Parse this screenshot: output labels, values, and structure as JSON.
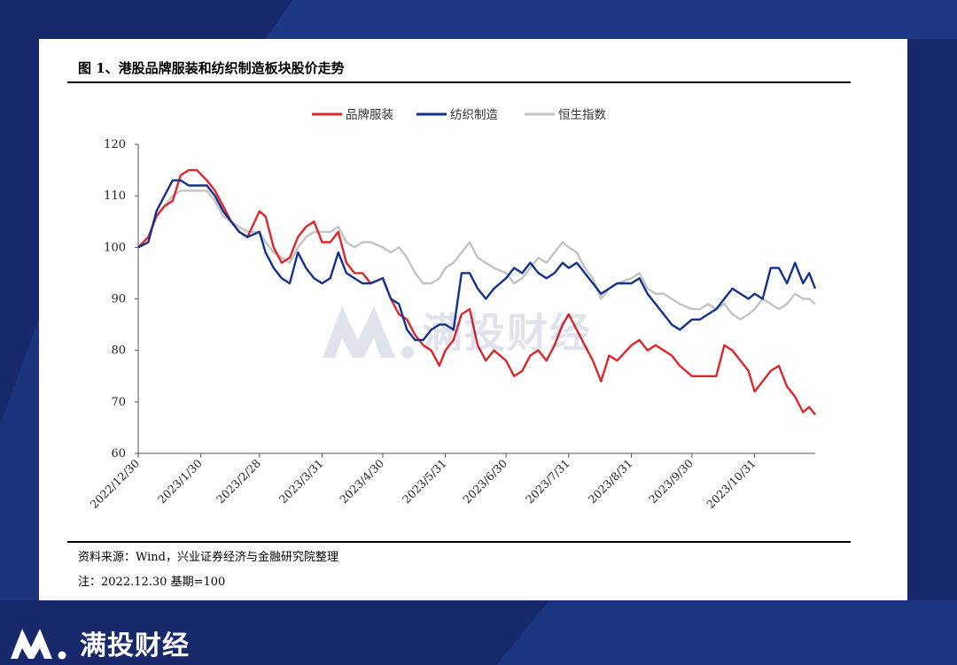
{
  "header": {
    "title": "图 1、港股品牌服装和纺织制造板块股价走势"
  },
  "footer": {
    "source": "资料来源：Wind，兴业证券经济与金融研究院整理",
    "note": "注：2022.12.30 基期=100"
  },
  "brand": {
    "name": "满投财经",
    "watermark": "满投财经",
    "logo_icon": "mantou-logo-icon"
  },
  "colors": {
    "background": "#17296b",
    "brand_series": "#e0262b",
    "textile_series": "#14318f",
    "hsi_series": "#c3c3c3"
  },
  "chart_data": {
    "type": "line",
    "title": "",
    "xlabel": "",
    "ylabel": "",
    "ylim": [
      60,
      120
    ],
    "yticks": [
      60,
      70,
      80,
      90,
      100,
      110,
      120
    ],
    "xlim": [
      "2022/12/30",
      "2023/11/30"
    ],
    "xtick_labels": [
      "2022/12/30",
      "2023/1/30",
      "2023/2/28",
      "2023/3/31",
      "2023/4/30",
      "2023/5/31",
      "2023/6/30",
      "2023/7/31",
      "2023/8/31",
      "2023/9/30",
      "2023/10/31"
    ],
    "legend": {
      "position": "top-center"
    },
    "grid": false,
    "series": [
      {
        "name": "品牌服装",
        "color": "#e0262b",
        "points": [
          [
            "2022/12/30",
            100
          ],
          [
            "2023/1/4",
            102
          ],
          [
            "2023/1/8",
            106
          ],
          [
            "2023/1/12",
            108
          ],
          [
            "2023/1/16",
            109
          ],
          [
            "2023/1/20",
            114
          ],
          [
            "2023/1/24",
            115
          ],
          [
            "2023/1/28",
            115
          ],
          [
            "2023/2/2",
            113
          ],
          [
            "2023/2/6",
            111
          ],
          [
            "2023/2/10",
            108
          ],
          [
            "2023/2/14",
            105
          ],
          [
            "2023/2/18",
            103
          ],
          [
            "2023/2/22",
            102
          ],
          [
            "2023/2/28",
            107
          ],
          [
            "2023/3/3",
            106
          ],
          [
            "2023/3/7",
            100
          ],
          [
            "2023/3/11",
            97
          ],
          [
            "2023/3/15",
            98
          ],
          [
            "2023/3/19",
            102
          ],
          [
            "2023/3/23",
            104
          ],
          [
            "2023/3/27",
            105
          ],
          [
            "2023/3/31",
            101
          ],
          [
            "2023/4/4",
            101
          ],
          [
            "2023/4/8",
            103
          ],
          [
            "2023/4/12",
            97
          ],
          [
            "2023/4/16",
            95
          ],
          [
            "2023/4/20",
            95
          ],
          [
            "2023/4/24",
            93
          ],
          [
            "2023/4/30",
            94
          ],
          [
            "2023/5/4",
            90
          ],
          [
            "2023/5/8",
            87
          ],
          [
            "2023/5/12",
            86
          ],
          [
            "2023/5/16",
            83
          ],
          [
            "2023/5/20",
            81
          ],
          [
            "2023/5/24",
            80
          ],
          [
            "2023/5/28",
            77
          ],
          [
            "2023/5/31",
            80
          ],
          [
            "2023/6/4",
            82
          ],
          [
            "2023/6/8",
            87
          ],
          [
            "2023/6/12",
            88
          ],
          [
            "2023/6/16",
            81
          ],
          [
            "2023/6/20",
            78
          ],
          [
            "2023/6/24",
            80
          ],
          [
            "2023/6/30",
            78
          ],
          [
            "2023/7/4",
            75
          ],
          [
            "2023/7/8",
            76
          ],
          [
            "2023/7/12",
            79
          ],
          [
            "2023/7/16",
            80
          ],
          [
            "2023/7/20",
            78
          ],
          [
            "2023/7/24",
            81
          ],
          [
            "2023/7/28",
            85
          ],
          [
            "2023/7/31",
            87
          ],
          [
            "2023/8/4",
            84
          ],
          [
            "2023/8/8",
            81
          ],
          [
            "2023/8/12",
            78
          ],
          [
            "2023/8/16",
            74
          ],
          [
            "2023/8/20",
            79
          ],
          [
            "2023/8/24",
            78
          ],
          [
            "2023/8/31",
            81
          ],
          [
            "2023/9/4",
            82
          ],
          [
            "2023/9/8",
            80
          ],
          [
            "2023/9/12",
            81
          ],
          [
            "2023/9/16",
            80
          ],
          [
            "2023/9/20",
            79
          ],
          [
            "2023/9/24",
            77
          ],
          [
            "2023/9/30",
            75
          ],
          [
            "2023/10/4",
            75
          ],
          [
            "2023/10/8",
            75
          ],
          [
            "2023/10/12",
            75
          ],
          [
            "2023/10/16",
            81
          ],
          [
            "2023/10/20",
            80
          ],
          [
            "2023/10/24",
            78
          ],
          [
            "2023/10/28",
            76
          ],
          [
            "2023/10/31",
            72
          ],
          [
            "2023/11/4",
            74
          ],
          [
            "2023/11/8",
            76
          ],
          [
            "2023/11/12",
            77
          ],
          [
            "2023/11/16",
            73
          ],
          [
            "2023/11/20",
            71
          ],
          [
            "2023/11/24",
            68
          ],
          [
            "2023/11/27",
            69
          ],
          [
            "2023/11/30",
            67.5
          ]
        ]
      },
      {
        "name": "纺织制造",
        "color": "#14318f",
        "points": [
          [
            "2022/12/30",
            100
          ],
          [
            "2023/1/4",
            101
          ],
          [
            "2023/1/8",
            107
          ],
          [
            "2023/1/12",
            110
          ],
          [
            "2023/1/16",
            113
          ],
          [
            "2023/1/20",
            113
          ],
          [
            "2023/1/24",
            112
          ],
          [
            "2023/1/28",
            112
          ],
          [
            "2023/2/2",
            112
          ],
          [
            "2023/2/6",
            110
          ],
          [
            "2023/2/10",
            107
          ],
          [
            "2023/2/14",
            105
          ],
          [
            "2023/2/18",
            103
          ],
          [
            "2023/2/22",
            102
          ],
          [
            "2023/2/28",
            103
          ],
          [
            "2023/3/3",
            99
          ],
          [
            "2023/3/7",
            96
          ],
          [
            "2023/3/11",
            94
          ],
          [
            "2023/3/15",
            93
          ],
          [
            "2023/3/19",
            99
          ],
          [
            "2023/3/23",
            96
          ],
          [
            "2023/3/27",
            94
          ],
          [
            "2023/3/31",
            93
          ],
          [
            "2023/4/4",
            94
          ],
          [
            "2023/4/8",
            99
          ],
          [
            "2023/4/12",
            95
          ],
          [
            "2023/4/16",
            94
          ],
          [
            "2023/4/20",
            93
          ],
          [
            "2023/4/24",
            93
          ],
          [
            "2023/4/30",
            94
          ],
          [
            "2023/5/4",
            90
          ],
          [
            "2023/5/8",
            89
          ],
          [
            "2023/5/12",
            84
          ],
          [
            "2023/5/16",
            82
          ],
          [
            "2023/5/20",
            82
          ],
          [
            "2023/5/24",
            84
          ],
          [
            "2023/5/28",
            85
          ],
          [
            "2023/5/31",
            85
          ],
          [
            "2023/6/4",
            84
          ],
          [
            "2023/6/8",
            95
          ],
          [
            "2023/6/12",
            95
          ],
          [
            "2023/6/16",
            92
          ],
          [
            "2023/6/20",
            90
          ],
          [
            "2023/6/24",
            92
          ],
          [
            "2023/6/30",
            94
          ],
          [
            "2023/7/4",
            96
          ],
          [
            "2023/7/8",
            95
          ],
          [
            "2023/7/12",
            97
          ],
          [
            "2023/7/16",
            95
          ],
          [
            "2023/7/20",
            94
          ],
          [
            "2023/7/24",
            95
          ],
          [
            "2023/7/28",
            97
          ],
          [
            "2023/7/31",
            96
          ],
          [
            "2023/8/4",
            97
          ],
          [
            "2023/8/8",
            95
          ],
          [
            "2023/8/12",
            93
          ],
          [
            "2023/8/16",
            91
          ],
          [
            "2023/8/20",
            92
          ],
          [
            "2023/8/24",
            93
          ],
          [
            "2023/8/31",
            93
          ],
          [
            "2023/9/4",
            94
          ],
          [
            "2023/9/8",
            91
          ],
          [
            "2023/9/12",
            89
          ],
          [
            "2023/9/16",
            87
          ],
          [
            "2023/9/20",
            85
          ],
          [
            "2023/9/24",
            84
          ],
          [
            "2023/9/30",
            86
          ],
          [
            "2023/10/4",
            86
          ],
          [
            "2023/10/8",
            87
          ],
          [
            "2023/10/12",
            88
          ],
          [
            "2023/10/16",
            90
          ],
          [
            "2023/10/20",
            92
          ],
          [
            "2023/10/24",
            91
          ],
          [
            "2023/10/28",
            90
          ],
          [
            "2023/10/31",
            91
          ],
          [
            "2023/11/4",
            90
          ],
          [
            "2023/11/8",
            96
          ],
          [
            "2023/11/12",
            96
          ],
          [
            "2023/11/16",
            93
          ],
          [
            "2023/11/20",
            97
          ],
          [
            "2023/11/24",
            93
          ],
          [
            "2023/11/27",
            95
          ],
          [
            "2023/11/30",
            92
          ]
        ]
      },
      {
        "name": "恒生指数",
        "color": "#c3c3c3",
        "points": [
          [
            "2022/12/30",
            100
          ],
          [
            "2023/1/4",
            102
          ],
          [
            "2023/1/8",
            106
          ],
          [
            "2023/1/12",
            108
          ],
          [
            "2023/1/16",
            110
          ],
          [
            "2023/1/20",
            111
          ],
          [
            "2023/1/24",
            111
          ],
          [
            "2023/1/28",
            111
          ],
          [
            "2023/2/2",
            111
          ],
          [
            "2023/2/6",
            109
          ],
          [
            "2023/2/10",
            106
          ],
          [
            "2023/2/14",
            105
          ],
          [
            "2023/2/18",
            104
          ],
          [
            "2023/2/22",
            103
          ],
          [
            "2023/2/28",
            103
          ],
          [
            "2023/3/3",
            101
          ],
          [
            "2023/3/7",
            99
          ],
          [
            "2023/3/11",
            98
          ],
          [
            "2023/3/15",
            97
          ],
          [
            "2023/3/19",
            100
          ],
          [
            "2023/3/23",
            102
          ],
          [
            "2023/3/27",
            103
          ],
          [
            "2023/3/31",
            103
          ],
          [
            "2023/4/4",
            103
          ],
          [
            "2023/4/8",
            104
          ],
          [
            "2023/4/12",
            101
          ],
          [
            "2023/4/16",
            100
          ],
          [
            "2023/4/20",
            101
          ],
          [
            "2023/4/24",
            101
          ],
          [
            "2023/4/30",
            100
          ],
          [
            "2023/5/4",
            99
          ],
          [
            "2023/5/8",
            100
          ],
          [
            "2023/5/12",
            98
          ],
          [
            "2023/5/16",
            95
          ],
          [
            "2023/5/20",
            93
          ],
          [
            "2023/5/24",
            93
          ],
          [
            "2023/5/28",
            94
          ],
          [
            "2023/5/31",
            96
          ],
          [
            "2023/6/4",
            97
          ],
          [
            "2023/6/8",
            99
          ],
          [
            "2023/6/12",
            101
          ],
          [
            "2023/6/16",
            98
          ],
          [
            "2023/6/20",
            97
          ],
          [
            "2023/6/24",
            96
          ],
          [
            "2023/6/30",
            95
          ],
          [
            "2023/7/4",
            93
          ],
          [
            "2023/7/8",
            94
          ],
          [
            "2023/7/12",
            96
          ],
          [
            "2023/7/16",
            98
          ],
          [
            "2023/7/20",
            97
          ],
          [
            "2023/7/24",
            99
          ],
          [
            "2023/7/28",
            101
          ],
          [
            "2023/7/31",
            100
          ],
          [
            "2023/8/4",
            99
          ],
          [
            "2023/8/8",
            96
          ],
          [
            "2023/8/12",
            94
          ],
          [
            "2023/8/16",
            90
          ],
          [
            "2023/8/20",
            92
          ],
          [
            "2023/8/24",
            93
          ],
          [
            "2023/8/31",
            94
          ],
          [
            "2023/9/4",
            95
          ],
          [
            "2023/9/8",
            92
          ],
          [
            "2023/9/12",
            91
          ],
          [
            "2023/9/16",
            91
          ],
          [
            "2023/9/20",
            90
          ],
          [
            "2023/9/24",
            89
          ],
          [
            "2023/9/30",
            88
          ],
          [
            "2023/10/4",
            88
          ],
          [
            "2023/10/8",
            89
          ],
          [
            "2023/10/12",
            88
          ],
          [
            "2023/10/16",
            89
          ],
          [
            "2023/10/20",
            87
          ],
          [
            "2023/10/24",
            86
          ],
          [
            "2023/10/28",
            87
          ],
          [
            "2023/10/31",
            88
          ],
          [
            "2023/11/4",
            90
          ],
          [
            "2023/11/8",
            89
          ],
          [
            "2023/11/12",
            88
          ],
          [
            "2023/11/16",
            89
          ],
          [
            "2023/11/20",
            91
          ],
          [
            "2023/11/24",
            90
          ],
          [
            "2023/11/27",
            90
          ],
          [
            "2023/11/30",
            89
          ]
        ]
      }
    ]
  }
}
